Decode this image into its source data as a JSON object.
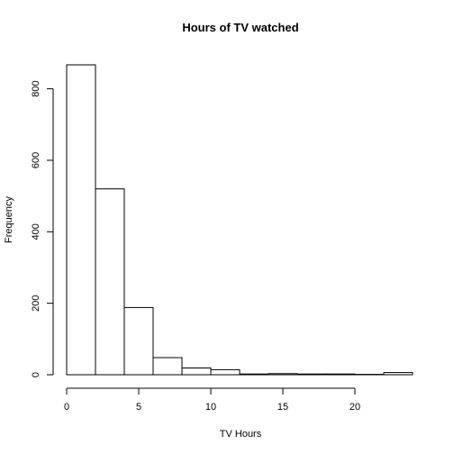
{
  "chart_data": {
    "type": "bar",
    "title": "Hours of TV watched",
    "xlabel": "TV Hours",
    "ylabel": "Frequency",
    "bins": [
      {
        "from": 0,
        "to": 2,
        "value": 867
      },
      {
        "from": 2,
        "to": 4,
        "value": 520
      },
      {
        "from": 4,
        "to": 6,
        "value": 188
      },
      {
        "from": 6,
        "to": 8,
        "value": 48
      },
      {
        "from": 8,
        "to": 10,
        "value": 19
      },
      {
        "from": 10,
        "to": 12,
        "value": 14
      },
      {
        "from": 12,
        "to": 14,
        "value": 2
      },
      {
        "from": 14,
        "to": 16,
        "value": 3
      },
      {
        "from": 16,
        "to": 18,
        "value": 2
      },
      {
        "from": 18,
        "to": 20,
        "value": 2
      },
      {
        "from": 20,
        "to": 22,
        "value": 1
      },
      {
        "from": 22,
        "to": 24,
        "value": 6
      }
    ],
    "xlim": [
      0,
      24
    ],
    "ylim": [
      0,
      867
    ],
    "x_ticks": [
      0,
      5,
      10,
      15,
      20
    ],
    "y_ticks": [
      0,
      200,
      400,
      600,
      800
    ],
    "grid": false,
    "legend": "none"
  }
}
